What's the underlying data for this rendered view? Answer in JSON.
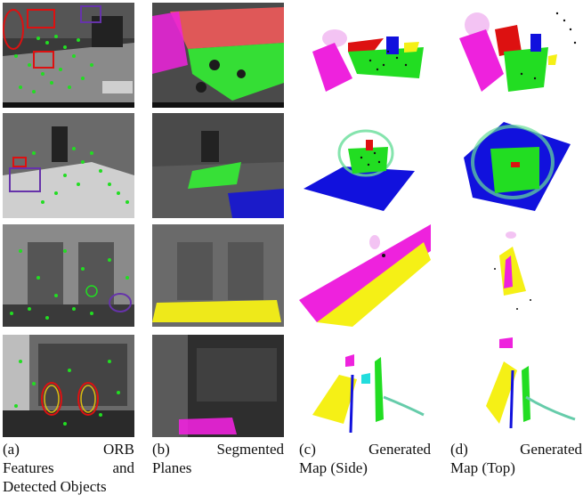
{
  "figure": {
    "captions": [
      {
        "label": "(a)",
        "l1_word": "ORB",
        "l2_a": "Features",
        "l2_b": "and",
        "l3": "Detected Objects"
      },
      {
        "label": "(b)",
        "l1_word": "Segmented",
        "l2_a": "Planes",
        "l2_b": "",
        "l3": ""
      },
      {
        "label": "(c)",
        "l1_word": "Generated",
        "l2_a": "Map (Side)",
        "l2_b": "",
        "l3": ""
      },
      {
        "label": "(d)",
        "l1_word": "Generated",
        "l2_a": "Map (Top)",
        "l2_b": "",
        "l3": ""
      }
    ]
  },
  "colors": {
    "orb_feature": "#22dd22",
    "plane_red": "#f05a5a",
    "plane_green": "#33ee33",
    "plane_magenta": "#ee22dd",
    "plane_blue": "#1111dd",
    "plane_yellow": "#f5f016",
    "object_box_red": "#dd1111"
  }
}
